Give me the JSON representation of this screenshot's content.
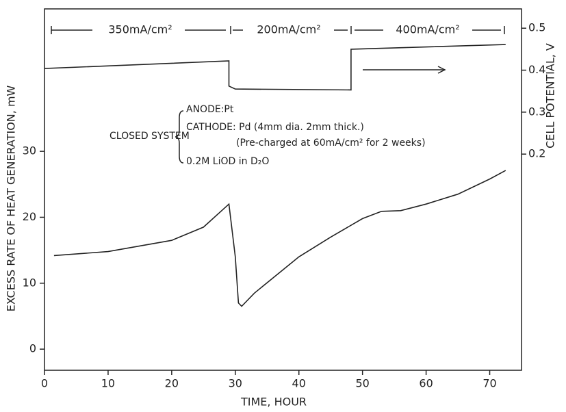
{
  "chart_data": {
    "type": "line",
    "xlabel": "TIME, HOUR",
    "ylabel": "EXCESS RATE OF HEAT GENERATION, mW",
    "y2label": "CELL POTENTIAL, V",
    "xlim": [
      0,
      75
    ],
    "xticks": [
      0,
      10,
      20,
      30,
      40,
      50,
      60,
      70
    ],
    "ylim": [
      -3.2,
      51.6
    ],
    "yticks": [
      0,
      10,
      20,
      30
    ],
    "y2lim": [
      -0.315,
      0.546
    ],
    "y2ticks": [
      0.2,
      0.3,
      0.4,
      0.5
    ],
    "series": [
      {
        "color": "#222222",
        "axis": "y",
        "x": [
          1.5,
          10,
          20,
          25,
          29,
          30,
          30.5,
          31,
          33,
          40,
          45,
          50,
          53,
          56,
          60,
          65,
          70,
          72.5
        ],
        "values": [
          14.2,
          14.8,
          16.5,
          18.5,
          22,
          14,
          7,
          6.5,
          8.5,
          14,
          17,
          19.8,
          20.9,
          21,
          22,
          23.5,
          25.8,
          27.1
        ]
      },
      {
        "color": "#222222",
        "axis": "y2",
        "x": [
          0,
          29,
          29,
          30,
          48.2,
          48.2,
          72.5
        ],
        "values": [
          0.404,
          0.422,
          0.362,
          0.355,
          0.353,
          0.45,
          0.461
        ]
      }
    ],
    "annotations": {
      "currents": [
        "350mA/cm²",
        "200mA/cm²",
        "400mA/cm²"
      ],
      "system": "CLOSED SYSTEM",
      "conditions": [
        "ANODE:Pt",
        "CATHODE: Pd (4mm dia. 2mm thick.)",
        "(Pre-charged at 60mA/cm²  for 2 weeks)",
        "0.2M LiOD in D₂O"
      ]
    }
  }
}
